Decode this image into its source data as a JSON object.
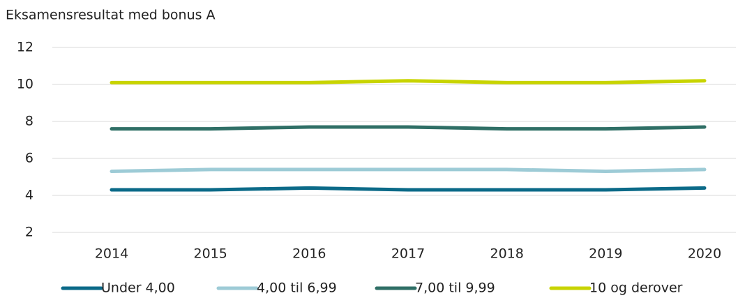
{
  "chart_data": {
    "type": "line",
    "title": "Eksamensresultat med bonus A",
    "categories": [
      "2014",
      "2015",
      "2016",
      "2017",
      "2018",
      "2019",
      "2020"
    ],
    "series": [
      {
        "name": "Under 4,00",
        "color": "#0b6a88",
        "values": [
          4.3,
          4.3,
          4.4,
          4.3,
          4.3,
          4.3,
          4.4
        ]
      },
      {
        "name": "4,00 til 6,99",
        "color": "#9dcbd6",
        "values": [
          5.3,
          5.4,
          5.4,
          5.4,
          5.4,
          5.3,
          5.4
        ]
      },
      {
        "name": "7,00 til 9,99",
        "color": "#2f6f66",
        "values": [
          7.6,
          7.6,
          7.7,
          7.7,
          7.6,
          7.6,
          7.7
        ]
      },
      {
        "name": "10 og derover",
        "color": "#c8d400",
        "values": [
          10.1,
          10.1,
          10.1,
          10.2,
          10.1,
          10.1,
          10.2
        ]
      }
    ],
    "ylim": [
      2,
      12
    ],
    "yticks": [
      2,
      4,
      6,
      8,
      10,
      12
    ],
    "grid": true,
    "legend": "bottom"
  }
}
